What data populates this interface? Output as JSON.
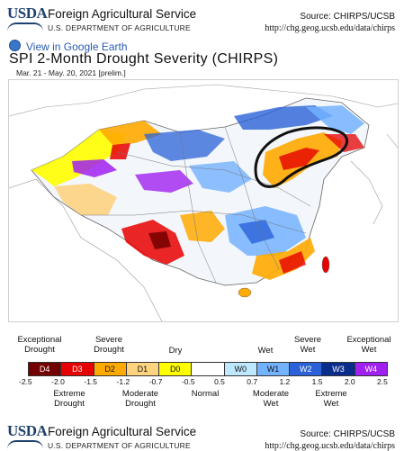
{
  "header": {
    "logo_text": "USDA",
    "agency": "Foreign Agricultural Service",
    "department": "U.S. DEPARTMENT OF AGRICULTURE",
    "source": "Source: CHIRPS/UCSB",
    "url": "http://chg.geog.ucsb.edu/data/chirps"
  },
  "google_earth_link": "View in Google Earth",
  "title": "SPI 2-Month Drought Severity (CHIRPS)",
  "subtitle": "Mar. 21 - May. 20, 2021 [prelim.]",
  "legend": {
    "top_labels": [
      "Exceptional Drought",
      "Severe Drought",
      "Dry",
      "Wet",
      "Severe Wet",
      "Exceptional Wet"
    ],
    "bottom_labels": [
      "Extreme Drought",
      "Moderate Drought",
      "Normal",
      "Moderate Wet",
      "Extreme Wet"
    ],
    "classes": [
      {
        "code": "D4",
        "color": "#730000",
        "text_color": "#ffffff"
      },
      {
        "code": "D3",
        "color": "#e60000",
        "text_color": "#ffffff"
      },
      {
        "code": "D2",
        "color": "#ffaa00",
        "text_color": "#111111"
      },
      {
        "code": "D1",
        "color": "#fcd37f",
        "text_color": "#111111"
      },
      {
        "code": "D0",
        "color": "#ffff00",
        "text_color": "#111111"
      },
      {
        "code": "",
        "color": "#ffffff",
        "text_color": "#111111"
      },
      {
        "code": "W0",
        "color": "#bee8ff",
        "text_color": "#111111"
      },
      {
        "code": "W1",
        "color": "#73b2ff",
        "text_color": "#111111"
      },
      {
        "code": "W2",
        "color": "#2a61d8",
        "text_color": "#ffffff"
      },
      {
        "code": "W3",
        "color": "#0a2d8c",
        "text_color": "#ffffff"
      },
      {
        "code": "W4",
        "color": "#a020f0",
        "text_color": "#ffffff"
      }
    ],
    "ticks": [
      "-2.5",
      "-2.0",
      "-1.5",
      "-1.2",
      "-0.7",
      "-0.5",
      "0.5",
      "0.7",
      "1.2",
      "1.5",
      "2.0",
      "2.5"
    ]
  },
  "footer": {
    "logo_text": "USDA",
    "agency": "Foreign Agricultural Service",
    "department": "U.S. DEPARTMENT OF AGRICULTURE",
    "source": "Source: CHIRPS/UCSB",
    "url": "http://chg.geog.ucsb.edu/data/chirps"
  }
}
